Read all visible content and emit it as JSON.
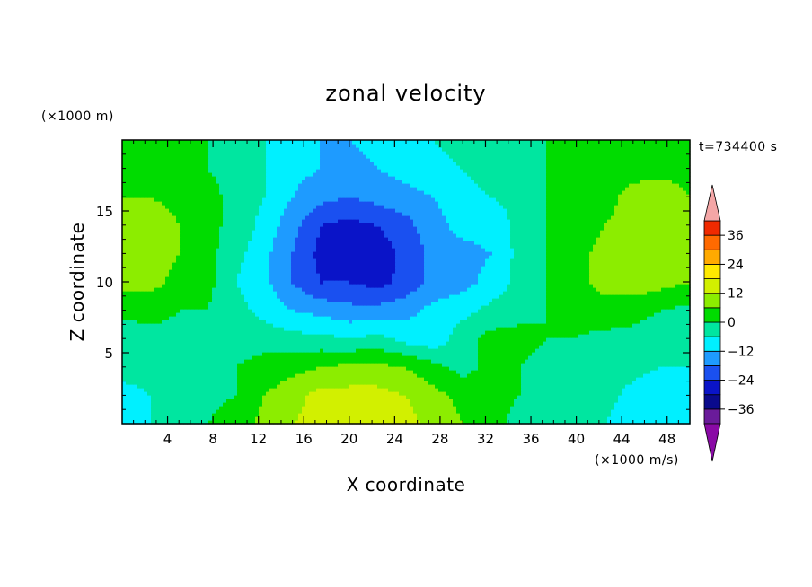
{
  "chart_data": {
    "type": "heatmap",
    "title": "zonal velocity",
    "xlabel": "X coordinate",
    "ylabel": "Z coordinate",
    "x_unit": "(×1000 m/s)",
    "y_unit": "(×1000 m)",
    "time_label": "t=734400 s",
    "xlim": [
      0,
      50
    ],
    "ylim": [
      0,
      20
    ],
    "x_ticks": [
      4,
      8,
      12,
      16,
      20,
      24,
      28,
      32,
      36,
      40,
      44,
      48
    ],
    "x_tick_labels": [
      "4",
      "8",
      "12",
      "16",
      "20",
      "24",
      "28",
      "32",
      "36",
      "40",
      "44",
      "48"
    ],
    "y_ticks": [
      5,
      10,
      15
    ],
    "y_tick_labels": [
      "5",
      "10",
      "15"
    ],
    "colorbar": {
      "levels": [
        -42,
        -36,
        -30,
        -24,
        -18,
        -12,
        -6,
        0,
        6,
        12,
        18,
        24,
        30,
        36,
        42
      ],
      "tick_values": [
        -36,
        -24,
        -12,
        0,
        12,
        24,
        36
      ],
      "tick_labels": [
        "−36",
        "−24",
        "−12",
        "0",
        "12",
        "24",
        "36"
      ],
      "colors": [
        "#6a1b9a",
        "#0a0a8c",
        "#0a14c8",
        "#1a50f0",
        "#1e9bff",
        "#00f0ff",
        "#00e6a0",
        "#00dc00",
        "#8ced00",
        "#d2f000",
        "#ffea00",
        "#ffaa00",
        "#ff6a00",
        "#f02a00"
      ],
      "under_color": "#8a0aa6",
      "over_color": "#f4a6a6"
    },
    "field": {
      "x": [
        0,
        2.5,
        5,
        7.5,
        10,
        12.5,
        15,
        17.5,
        20,
        22.5,
        25,
        27.5,
        30,
        32.5,
        35,
        37.5,
        40,
        42.5,
        45,
        47.5,
        50
      ],
      "z": [
        0,
        2,
        4,
        6,
        8,
        10,
        12,
        14,
        16,
        18,
        20
      ],
      "u": [
        [
          -8,
          -6,
          -4,
          0,
          2,
          8,
          12,
          14,
          18,
          18,
          14,
          10,
          6,
          2,
          -2,
          -4,
          -6,
          -6,
          -10,
          -10,
          -8
        ],
        [
          -8,
          -6,
          -4,
          -1,
          0,
          6,
          10,
          14,
          14,
          14,
          12,
          8,
          4,
          2,
          0,
          -2,
          -4,
          -4,
          -8,
          -10,
          -8
        ],
        [
          -4,
          -4,
          -4,
          -2,
          0,
          2,
          4,
          6,
          8,
          8,
          6,
          2,
          -2,
          2,
          0,
          -2,
          -4,
          -4,
          -4,
          -6,
          -6
        ],
        [
          -4,
          -2,
          -2,
          0,
          -2,
          -2,
          -4,
          -4,
          -6,
          -4,
          -8,
          -10,
          -2,
          2,
          2,
          0,
          0,
          -2,
          -2,
          -4,
          -4
        ],
        [
          2,
          2,
          0,
          0,
          -4,
          -8,
          -12,
          -14,
          -16,
          -16,
          -14,
          -10,
          -8,
          -4,
          -2,
          0,
          2,
          4,
          2,
          0,
          -2
        ],
        [
          8,
          8,
          4,
          2,
          -6,
          -10,
          -18,
          -24,
          -24,
          -26,
          -22,
          -16,
          -14,
          -10,
          -4,
          0,
          4,
          8,
          10,
          8,
          6
        ],
        [
          12,
          10,
          6,
          2,
          -4,
          -10,
          -18,
          -26,
          -30,
          -28,
          -22,
          -16,
          -14,
          -12,
          -4,
          0,
          4,
          8,
          10,
          10,
          8
        ],
        [
          10,
          10,
          6,
          2,
          -2,
          -8,
          -16,
          -24,
          -26,
          -24,
          -20,
          -14,
          -10,
          -10,
          -4,
          0,
          2,
          6,
          8,
          10,
          8
        ],
        [
          6,
          6,
          4,
          2,
          -2,
          -6,
          -12,
          -16,
          -18,
          -16,
          -14,
          -12,
          -8,
          -6,
          -4,
          0,
          0,
          4,
          8,
          10,
          6
        ],
        [
          2,
          2,
          2,
          0,
          -2,
          -6,
          -10,
          -12,
          -14,
          -12,
          -10,
          -8,
          -6,
          -4,
          -2,
          0,
          0,
          2,
          4,
          4,
          4
        ],
        [
          2,
          2,
          2,
          0,
          -2,
          -6,
          -10,
          -12,
          -12,
          -10,
          -8,
          -6,
          -4,
          -2,
          -2,
          0,
          0,
          2,
          4,
          4,
          4
        ]
      ]
    }
  }
}
